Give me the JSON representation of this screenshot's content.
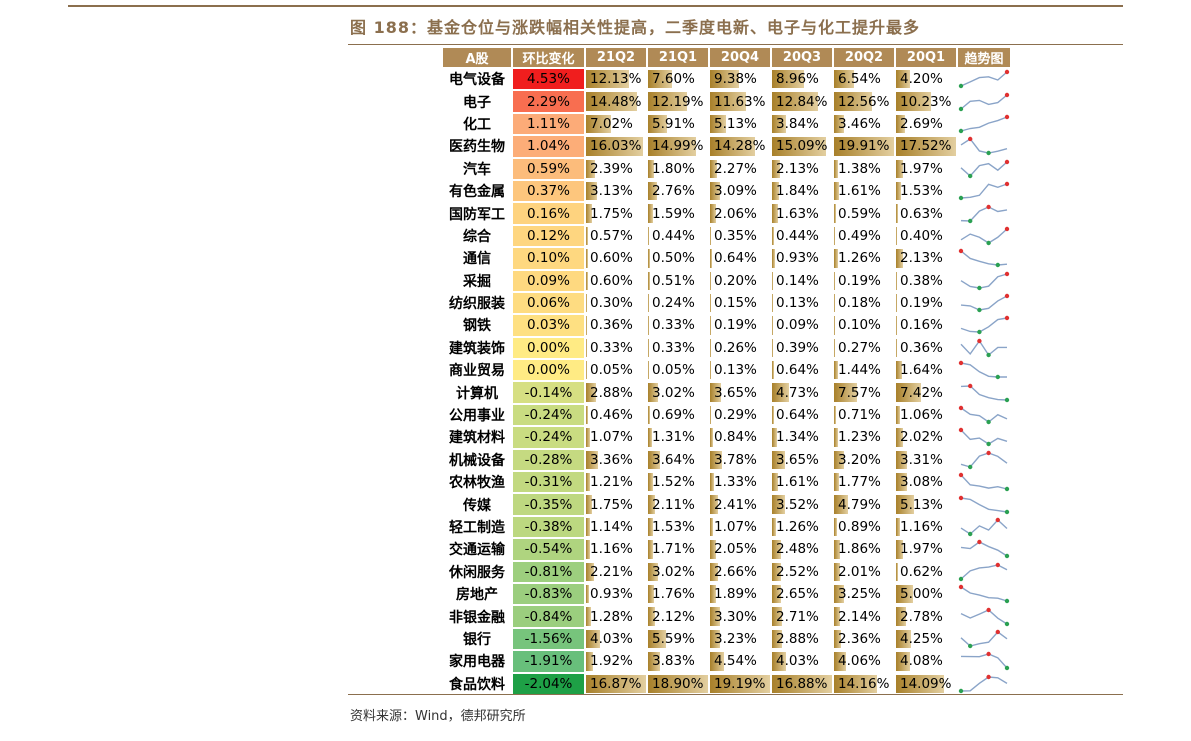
{
  "figure": {
    "title": "图 188：基金仓位与涨跌幅相关性提高，二季度电新、电子与化工提升最多",
    "source": "资料来源：Wind，德邦研究所"
  },
  "table": {
    "headers": [
      "A股",
      "环比变化",
      "21Q2",
      "21Q1",
      "20Q4",
      "20Q3",
      "20Q2",
      "20Q1",
      "趋势图"
    ],
    "colors": {
      "header_bg": "#b08a56",
      "bar_start": "#a8802a",
      "bar_end": "#e3cfa0",
      "spark_line": "#8aa4c8",
      "spark_max_dot": "#e03030",
      "spark_min_dot": "#2aa052"
    },
    "rows": [
      {
        "name": "电气设备",
        "change": "4.53%",
        "change_value": 4.53,
        "quarters": [
          "12.13%",
          "7.60%",
          "9.38%",
          "8.96%",
          "6.54%",
          "4.20%"
        ]
      },
      {
        "name": "电子",
        "change": "2.29%",
        "change_value": 2.29,
        "quarters": [
          "14.48%",
          "12.19%",
          "11.63%",
          "12.84%",
          "12.56%",
          "10.23%"
        ]
      },
      {
        "name": "化工",
        "change": "1.11%",
        "change_value": 1.11,
        "quarters": [
          "7.02%",
          "5.91%",
          "5.13%",
          "3.84%",
          "3.46%",
          "2.69%"
        ]
      },
      {
        "name": "医药生物",
        "change": "1.04%",
        "change_value": 1.04,
        "quarters": [
          "16.03%",
          "14.99%",
          "14.28%",
          "15.09%",
          "19.91%",
          "17.52%"
        ]
      },
      {
        "name": "汽车",
        "change": "0.59%",
        "change_value": 0.59,
        "quarters": [
          "2.39%",
          "1.80%",
          "2.27%",
          "2.13%",
          "1.38%",
          "1.97%"
        ]
      },
      {
        "name": "有色金属",
        "change": "0.37%",
        "change_value": 0.37,
        "quarters": [
          "3.13%",
          "2.76%",
          "3.09%",
          "1.84%",
          "1.61%",
          "1.53%"
        ]
      },
      {
        "name": "国防军工",
        "change": "0.16%",
        "change_value": 0.16,
        "quarters": [
          "1.75%",
          "1.59%",
          "2.06%",
          "1.63%",
          "0.59%",
          "0.63%"
        ]
      },
      {
        "name": "综合",
        "change": "0.12%",
        "change_value": 0.12,
        "quarters": [
          "0.57%",
          "0.44%",
          "0.35%",
          "0.44%",
          "0.49%",
          "0.40%"
        ]
      },
      {
        "name": "通信",
        "change": "0.10%",
        "change_value": 0.1,
        "quarters": [
          "0.60%",
          "0.50%",
          "0.64%",
          "0.93%",
          "1.26%",
          "2.13%"
        ]
      },
      {
        "name": "采掘",
        "change": "0.09%",
        "change_value": 0.09,
        "quarters": [
          "0.60%",
          "0.51%",
          "0.20%",
          "0.14%",
          "0.19%",
          "0.38%"
        ]
      },
      {
        "name": "纺织服装",
        "change": "0.06%",
        "change_value": 0.06,
        "quarters": [
          "0.30%",
          "0.24%",
          "0.15%",
          "0.13%",
          "0.18%",
          "0.19%"
        ]
      },
      {
        "name": "钢铁",
        "change": "0.03%",
        "change_value": 0.03,
        "quarters": [
          "0.36%",
          "0.33%",
          "0.19%",
          "0.09%",
          "0.10%",
          "0.16%"
        ]
      },
      {
        "name": "建筑装饰",
        "change": "0.00%",
        "change_value": 0.0,
        "quarters": [
          "0.33%",
          "0.33%",
          "0.26%",
          "0.39%",
          "0.27%",
          "0.36%"
        ]
      },
      {
        "name": "商业贸易",
        "change": "0.00%",
        "change_value": 0.0,
        "quarters": [
          "0.05%",
          "0.05%",
          "0.13%",
          "0.64%",
          "1.44%",
          "1.64%"
        ]
      },
      {
        "name": "计算机",
        "change": "-0.14%",
        "change_value": -0.14,
        "quarters": [
          "2.88%",
          "3.02%",
          "3.65%",
          "4.73%",
          "7.57%",
          "7.42%"
        ]
      },
      {
        "name": "公用事业",
        "change": "-0.24%",
        "change_value": -0.24,
        "quarters": [
          "0.46%",
          "0.69%",
          "0.29%",
          "0.64%",
          "0.71%",
          "1.06%"
        ]
      },
      {
        "name": "建筑材料",
        "change": "-0.24%",
        "change_value": -0.24,
        "quarters": [
          "1.07%",
          "1.31%",
          "0.84%",
          "1.34%",
          "1.23%",
          "2.02%"
        ]
      },
      {
        "name": "机械设备",
        "change": "-0.28%",
        "change_value": -0.28,
        "quarters": [
          "3.36%",
          "3.64%",
          "3.78%",
          "3.65%",
          "3.20%",
          "3.31%"
        ]
      },
      {
        "name": "农林牧渔",
        "change": "-0.31%",
        "change_value": -0.31,
        "quarters": [
          "1.21%",
          "1.52%",
          "1.33%",
          "1.61%",
          "1.77%",
          "3.08%"
        ]
      },
      {
        "name": "传媒",
        "change": "-0.35%",
        "change_value": -0.35,
        "quarters": [
          "1.75%",
          "2.11%",
          "2.41%",
          "3.52%",
          "4.79%",
          "5.13%"
        ]
      },
      {
        "name": "轻工制造",
        "change": "-0.38%",
        "change_value": -0.38,
        "quarters": [
          "1.14%",
          "1.53%",
          "1.07%",
          "1.26%",
          "0.89%",
          "1.16%"
        ]
      },
      {
        "name": "交通运输",
        "change": "-0.54%",
        "change_value": -0.54,
        "quarters": [
          "1.16%",
          "1.71%",
          "2.05%",
          "2.48%",
          "1.86%",
          "1.97%"
        ]
      },
      {
        "name": "休闲服务",
        "change": "-0.81%",
        "change_value": -0.81,
        "quarters": [
          "2.21%",
          "3.02%",
          "2.66%",
          "2.52%",
          "2.01%",
          "0.62%"
        ]
      },
      {
        "name": "房地产",
        "change": "-0.83%",
        "change_value": -0.83,
        "quarters": [
          "0.93%",
          "1.76%",
          "1.89%",
          "2.65%",
          "3.25%",
          "5.00%"
        ]
      },
      {
        "name": "非银金融",
        "change": "-0.84%",
        "change_value": -0.84,
        "quarters": [
          "1.28%",
          "2.12%",
          "3.30%",
          "2.71%",
          "2.14%",
          "2.78%"
        ]
      },
      {
        "name": "银行",
        "change": "-1.56%",
        "change_value": -1.56,
        "quarters": [
          "4.03%",
          "5.59%",
          "3.23%",
          "2.88%",
          "2.36%",
          "4.25%"
        ]
      },
      {
        "name": "家用电器",
        "change": "-1.91%",
        "change_value": -1.91,
        "quarters": [
          "1.92%",
          "3.83%",
          "4.54%",
          "4.03%",
          "4.06%",
          "4.08%"
        ]
      },
      {
        "name": "食品饮料",
        "change": "-2.04%",
        "change_value": -2.04,
        "quarters": [
          "16.87%",
          "18.90%",
          "19.19%",
          "16.88%",
          "14.16%",
          "14.09%"
        ]
      }
    ]
  }
}
